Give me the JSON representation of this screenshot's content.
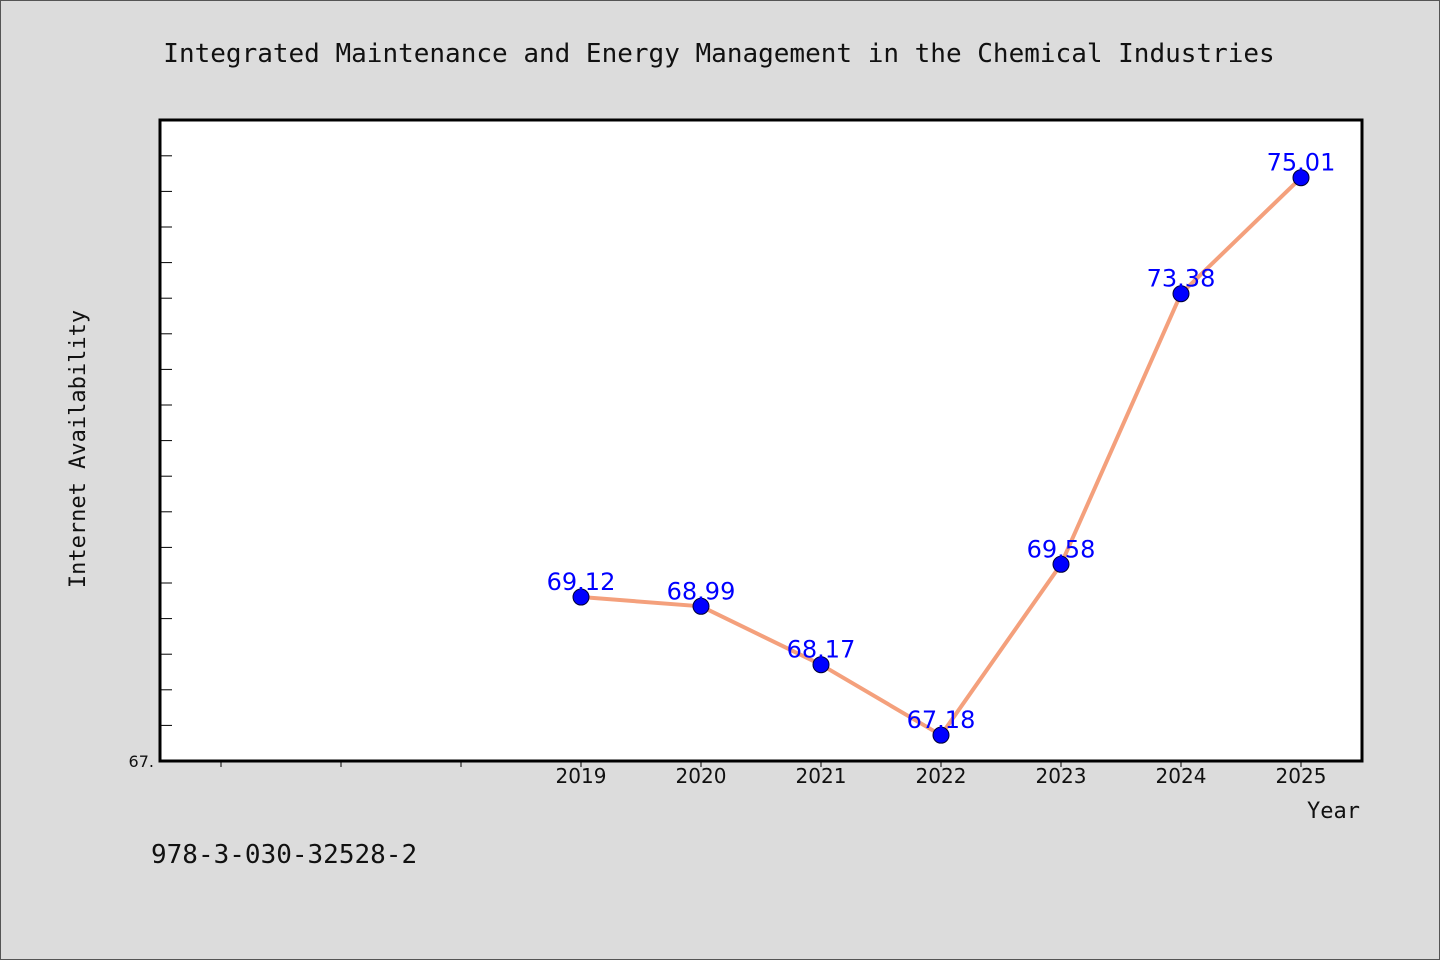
{
  "chart_data": {
    "type": "line",
    "title": "Integrated Maintenance and Energy Management in the Chemical Industries",
    "xlabel": "Year",
    "ylabel": "Internet Availability",
    "categories": [
      "2019",
      "2020",
      "2021",
      "2022",
      "2023",
      "2024",
      "2025"
    ],
    "series": [
      {
        "values": [
          69.12,
          68.99,
          68.17,
          67.18,
          69.58,
          73.38,
          75.01
        ],
        "labels": [
          "69.12",
          "68.99",
          "68.17",
          "67.18",
          "69.58",
          "73.38",
          "75.01"
        ]
      }
    ],
    "ylim": [
      67.0,
      76.0
    ],
    "ytick_labels": [
      "67."
    ],
    "grid": false,
    "line_color": "#f4a07c",
    "marker_color": "#0000ff",
    "label_color": "#0000ff"
  },
  "footer": {
    "isbn": "978-3-030-32528-2"
  }
}
